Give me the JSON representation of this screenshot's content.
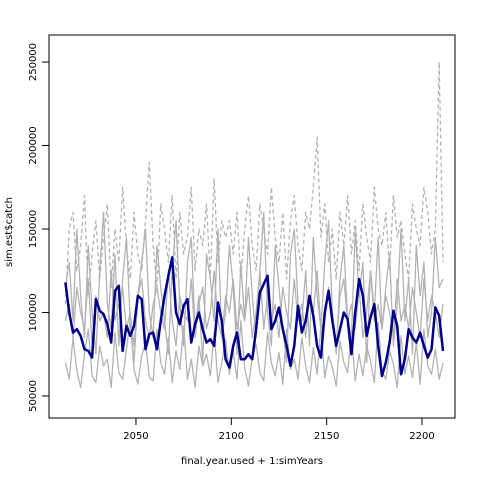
{
  "chart_data": {
    "type": "line",
    "xlabel": "final.year.used + 1:simYears",
    "ylabel": "sim.est$catch",
    "xlim": [
      2004.4,
      2217.3
    ],
    "ylim": [
      36800,
      266200
    ],
    "xticks": [
      2050,
      2100,
      2150,
      2200
    ],
    "yticks": [
      50000,
      100000,
      150000,
      200000,
      250000
    ],
    "x": [
      2013,
      2015,
      2017,
      2019,
      2021,
      2023,
      2025,
      2027,
      2029,
      2031,
      2033,
      2035,
      2037,
      2039,
      2041,
      2043,
      2045,
      2047,
      2049,
      2051,
      2053,
      2055,
      2057,
      2059,
      2061,
      2063,
      2065,
      2067,
      2069,
      2071,
      2073,
      2075,
      2077,
      2079,
      2081,
      2083,
      2085,
      2087,
      2089,
      2091,
      2093,
      2095,
      2097,
      2099,
      2101,
      2103,
      2105,
      2107,
      2109,
      2111,
      2113,
      2115,
      2117,
      2119,
      2121,
      2123,
      2125,
      2127,
      2129,
      2131,
      2133,
      2135,
      2137,
      2139,
      2141,
      2143,
      2145,
      2147,
      2149,
      2151,
      2153,
      2155,
      2157,
      2159,
      2161,
      2163,
      2165,
      2167,
      2169,
      2171,
      2173,
      2175,
      2177,
      2179,
      2181,
      2183,
      2185,
      2187,
      2189,
      2191,
      2193,
      2195,
      2197,
      2199,
      2201,
      2203,
      2205,
      2207,
      2209,
      2211
    ],
    "series": [
      {
        "color": "#b3b3b3",
        "linestyle": "solid",
        "values": [
          115000,
          130000,
          95000,
          150000,
          110000,
          85000,
          140000,
          100000,
          75000,
          125000,
          160000,
          105000,
          90000,
          135000,
          80000,
          120000,
          145000,
          95000,
          70000,
          110000,
          130000,
          150000,
          100000,
          85000,
          140000,
          115000,
          95000,
          75000,
          125000,
          155000,
          105000,
          80000,
          130000,
          145000,
          90000,
          110000,
          70000,
          135000,
          120000,
          95000,
          150000,
          85000,
          100000,
          140000,
          115000,
          75000,
          130000,
          95000,
          145000,
          110000,
          85000,
          125000,
          160000,
          100000,
          80000,
          140000,
          115000,
          90000,
          70000,
          135000,
          150000,
          105000,
          95000,
          125000,
          80000,
          145000,
          110000,
          90000,
          130000,
          155000,
          100000,
          75000,
          120000,
          140000,
          95000,
          85000,
          150000,
          110000,
          130000,
          70000,
          125000,
          100000,
          145000,
          90000,
          115000,
          135000,
          80000,
          105000,
          150000,
          95000,
          120000,
          75000,
          140000,
          110000,
          130000,
          85000,
          100000,
          145000,
          115000,
          120000
        ]
      },
      {
        "color": "#b3b3b3",
        "linestyle": "solid",
        "values": [
          70000,
          60000,
          85000,
          65000,
          55000,
          75000,
          90000,
          62000,
          58000,
          80000,
          68000,
          72000,
          55000,
          88000,
          64000,
          60000,
          78000,
          95000,
          66000,
          57000,
          74000,
          82000,
          61000,
          59000,
          90000,
          70000,
          63000,
          85000,
          58000,
          77000,
          66000,
          92000,
          60000,
          72000,
          55000,
          80000,
          68000,
          75000,
          62000,
          88000,
          58000,
          70000,
          84000,
          63000,
          77000,
          60000,
          95000,
          67000,
          56000,
          73000,
          81000,
          64000,
          59000,
          88000,
          70000,
          62000,
          76000,
          57000,
          90000,
          66000,
          72000,
          60000,
          85000,
          68000,
          58000,
          79000,
          63000,
          92000,
          61000,
          74000,
          67000,
          56000,
          83000,
          70000,
          64000,
          88000,
          59000,
          75000,
          62000,
          80000,
          71000,
          58000,
          94000,
          65000,
          60000,
          77000,
          69000,
          55000,
          86000,
          63000,
          74000,
          61000,
          82000,
          57000,
          90000,
          68000,
          63000,
          78000,
          60000,
          70000
        ]
      },
      {
        "color": "#b3b3b3",
        "linestyle": "dashed",
        "values": [
          105000,
          150000,
          160000,
          125000,
          140000,
          170000,
          110000,
          135000,
          155000,
          120000,
          145000,
          165000,
          115000,
          150000,
          130000,
          175000,
          140000,
          120000,
          160000,
          135000,
          125000,
          155000,
          190000,
          140000,
          115000,
          165000,
          150000,
          130000,
          170000,
          120000,
          160000,
          135000,
          145000,
          175000,
          125000,
          150000,
          140000,
          165000,
          120000,
          180000,
          130000,
          155000,
          145000,
          155000,
          135000,
          160000,
          120000,
          150000,
          170000,
          140000,
          125000,
          165000,
          150000,
          135000,
          175000,
          145000,
          130000,
          160000,
          120000,
          155000,
          170000,
          140000,
          125000,
          160000,
          150000,
          175000,
          205000,
          145000,
          165000,
          130000,
          150000,
          120000,
          160000,
          140000,
          170000,
          135000,
          155000,
          125000,
          165000,
          145000,
          130000,
          175000,
          150000,
          140000,
          160000,
          125000,
          170000,
          145000,
          155000,
          135000,
          120000,
          165000,
          150000,
          140000,
          175000,
          160000,
          135000,
          150000,
          250000,
          130000
        ]
      },
      {
        "color": "#b3b3b3",
        "linestyle": "solid",
        "values": [
          95000,
          105000,
          85000,
          115000,
          100000,
          90000,
          120000,
          80000,
          110000,
          95000,
          100000,
          85000,
          125000,
          95000,
          105000,
          115000,
          90000,
          100000,
          80000,
          110000,
          120000,
          95000,
          85000,
          105000,
          115000,
          100000,
          90000,
          125000,
          95000,
          80000,
          110000,
          100000,
          95000,
          120000,
          85000,
          105000,
          115000,
          90000,
          100000,
          125000,
          95000,
          85000,
          110000,
          100000,
          120000,
          90000,
          105000,
          95000,
          115000,
          85000,
          100000,
          125000,
          90000,
          110000,
          95000,
          105000,
          85000,
          115000,
          100000,
          90000,
          120000,
          95000,
          105000,
          85000,
          110000,
          100000,
          125000,
          90000,
          95000,
          115000,
          100000,
          80000,
          110000,
          120000,
          95000,
          105000,
          90000,
          115000,
          85000,
          100000,
          125000,
          95000,
          105000,
          90000,
          110000,
          100000,
          85000,
          120000,
          95000,
          105000,
          90000,
          115000,
          100000,
          85000,
          120000,
          95000,
          110000,
          100000,
          85000,
          105000
        ]
      },
      {
        "color": "#00008b",
        "linestyle": "solid",
        "width": 2.5,
        "values": [
          118000,
          100000,
          88000,
          90000,
          86000,
          78000,
          77000,
          73000,
          108000,
          101000,
          99000,
          93000,
          82000,
          113000,
          116000,
          77000,
          92000,
          86000,
          92000,
          110000,
          108000,
          78000,
          87000,
          88000,
          78000,
          95000,
          110000,
          122000,
          133000,
          100000,
          93000,
          104000,
          108000,
          82000,
          93000,
          100000,
          90000,
          82000,
          84000,
          80000,
          106000,
          95000,
          72000,
          67000,
          80000,
          88000,
          72000,
          72000,
          75000,
          72000,
          90000,
          112000,
          117000,
          122000,
          90000,
          95000,
          103000,
          90000,
          80000,
          68000,
          80000,
          104000,
          88000,
          95000,
          110000,
          98000,
          80000,
          73000,
          100000,
          113000,
          95000,
          80000,
          90000,
          100000,
          96000,
          75000,
          100000,
          120000,
          110000,
          86000,
          97000,
          105000,
          80000,
          62000,
          70000,
          82000,
          101000,
          92000,
          63000,
          72000,
          90000,
          85000,
          82000,
          88000,
          80000,
          73000,
          78000,
          103000,
          98000,
          77000
        ]
      }
    ]
  }
}
